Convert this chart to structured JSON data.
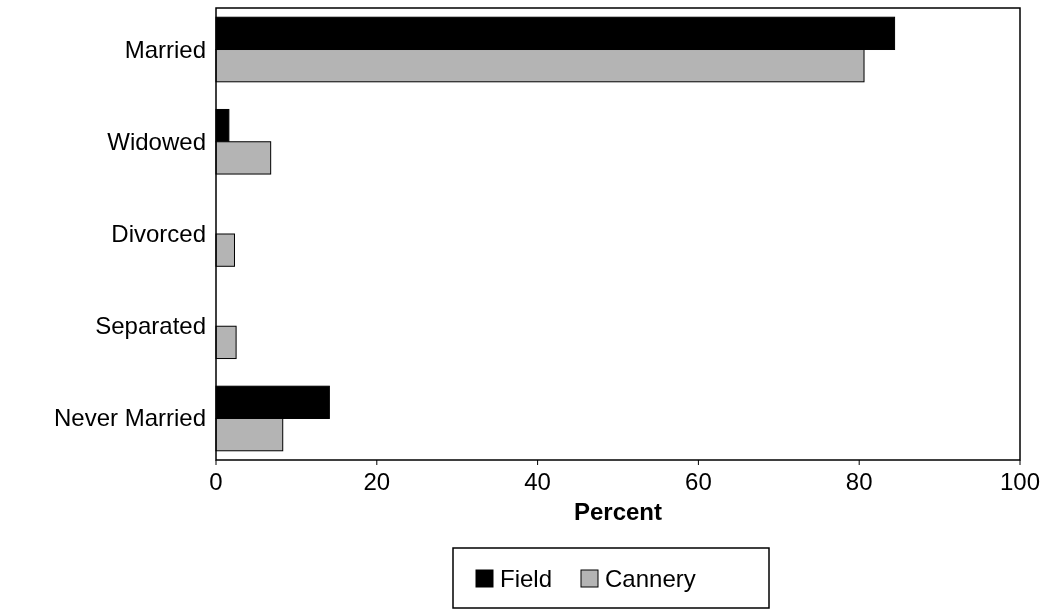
{
  "chart_data": {
    "type": "bar",
    "orientation": "horizontal",
    "xlabel": "Percent",
    "categories": [
      "Married",
      "Widowed",
      "Divorced",
      "Separated",
      "Never Married"
    ],
    "series": [
      {
        "name": "Field",
        "color": "#000000",
        "values": [
          84.4,
          1.6,
          0,
          null,
          14.1
        ]
      },
      {
        "name": "Cannery",
        "color": "#b4b4b4",
        "values": [
          80.6,
          6.8,
          2.3,
          2.5,
          8.3
        ]
      }
    ],
    "xlim": [
      0,
      100
    ],
    "xticks": [
      0,
      20,
      40,
      60,
      80,
      100
    ],
    "legend": "bottom",
    "grid": false
  }
}
